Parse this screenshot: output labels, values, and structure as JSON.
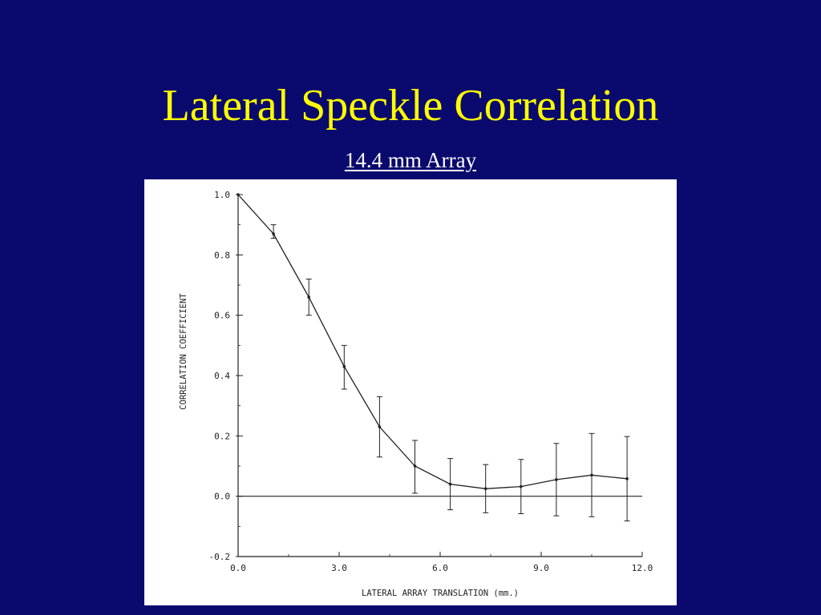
{
  "slide": {
    "title": "Lateral Speckle Correlation",
    "subtitle": "14.4 mm Array"
  },
  "colors": {
    "background": "#0a0a6e",
    "title": "#ffff00",
    "subtitle": "#ffffff",
    "plot_bg": "#ffffff",
    "ink": "#222222"
  },
  "chart_data": {
    "type": "line",
    "title": "",
    "xlabel": "LATERAL ARRAY TRANSLATION (mm.)",
    "ylabel": "CORRELATION COEFFICIENT",
    "xlim": [
      0.0,
      12.0
    ],
    "ylim": [
      -0.2,
      1.0
    ],
    "x_ticks": [
      0.0,
      3.0,
      6.0,
      9.0,
      12.0
    ],
    "x_tick_labels": [
      "0.0",
      "3.0",
      "6.0",
      "9.0",
      "12.0"
    ],
    "y_ticks": [
      -0.2,
      0.0,
      0.2,
      0.4,
      0.6,
      0.8,
      1.0
    ],
    "y_tick_labels": [
      "-0.2",
      "0.0",
      "0.2",
      "0.4",
      "0.6",
      "0.8",
      "1.0"
    ],
    "grid": false,
    "zero_line": true,
    "series": [
      {
        "x": [
          0.0,
          1.05,
          2.1,
          3.15,
          4.2,
          5.25,
          6.3,
          7.35,
          8.4,
          9.45,
          10.5,
          11.55
        ],
        "y": [
          1.0,
          0.87,
          0.66,
          0.43,
          0.23,
          0.1,
          0.04,
          0.025,
          0.032,
          0.055,
          0.07,
          0.058
        ],
        "error_low": [
          1.0,
          0.855,
          0.6,
          0.355,
          0.13,
          0.01,
          -0.045,
          -0.055,
          -0.058,
          -0.065,
          -0.068,
          -0.082
        ],
        "error_high": [
          1.0,
          0.9,
          0.72,
          0.5,
          0.33,
          0.185,
          0.125,
          0.105,
          0.122,
          0.175,
          0.208,
          0.198
        ]
      }
    ]
  }
}
